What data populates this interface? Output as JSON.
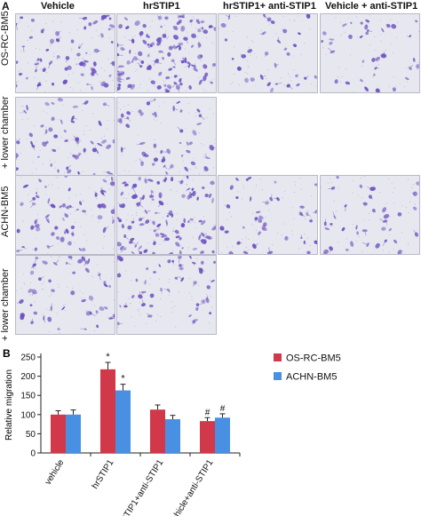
{
  "figure": {
    "panel_a_letter": "A",
    "panel_b_letter": "B",
    "column_headers": [
      "Vehicle",
      "hrSTIP1",
      "hrSTIP1+ anti-STIP1",
      "Vehicle + anti-STIP1"
    ],
    "row_labels": {
      "os_rc_bm5": "OS-RC-BM5",
      "lower_chamber_1": "+ lower chamber",
      "achn_bm5": "ACHN-BM5",
      "lower_chamber_2": "+ lower chamber"
    },
    "micrographs": [
      {
        "row": 0,
        "col": 0,
        "density": 0.55
      },
      {
        "row": 0,
        "col": 1,
        "density": 1.0
      },
      {
        "row": 0,
        "col": 2,
        "density": 0.28
      },
      {
        "row": 0,
        "col": 3,
        "density": 0.32
      },
      {
        "row": 1,
        "col": 0,
        "density": 0.45
      },
      {
        "row": 1,
        "col": 1,
        "density": 0.42
      },
      {
        "row": 2,
        "col": 0,
        "density": 0.5
      },
      {
        "row": 2,
        "col": 1,
        "density": 0.9
      },
      {
        "row": 2,
        "col": 2,
        "density": 0.35
      },
      {
        "row": 2,
        "col": 3,
        "density": 0.33
      },
      {
        "row": 3,
        "col": 0,
        "density": 0.42
      },
      {
        "row": 3,
        "col": 1,
        "density": 0.4
      }
    ],
    "stain_color": "#6a4fc0",
    "background_color": "#e7e7ef"
  },
  "chart_data": {
    "type": "bar",
    "categories": [
      "vehicle",
      "hrSTIP1",
      "hrSTIP1+anti-STIP1",
      "vehicle+anti-STIP1"
    ],
    "series": [
      {
        "name": "OS-RC-BM5",
        "color": "#d1384a",
        "values": [
          100,
          218,
          113,
          83
        ],
        "errors": [
          10,
          18,
          12,
          9
        ],
        "marks": [
          "",
          "*",
          "",
          "#"
        ]
      },
      {
        "name": "ACHN-BM5",
        "color": "#4a90e2",
        "values": [
          100,
          163,
          88,
          92
        ],
        "errors": [
          12,
          16,
          10,
          10
        ],
        "marks": [
          "",
          "*",
          "",
          "#"
        ]
      }
    ],
    "title": "",
    "xlabel": "",
    "ylabel": "Relative migration",
    "ylim": [
      0,
      250
    ],
    "yticks": [
      0,
      50,
      100,
      150,
      200,
      250
    ],
    "legend_position": "top-right",
    "grid": false
  }
}
